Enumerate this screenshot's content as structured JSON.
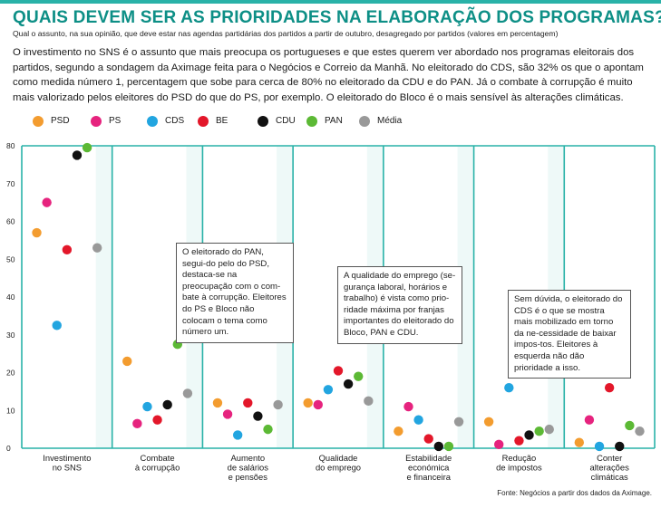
{
  "header": {
    "title": "QUAIS DEVEM SER AS PRIORIDADES NA ELABORAÇÃO DOS PROGRAMAS?",
    "subtitle": "Qual o assunto, na sua opinião, que deve estar nas agendas partidárias dos partidos a partir de outubro, desagregado por partidos (valores em percentagem)",
    "intro": "O investimento no SNS é o assunto que mais preocupa os portugueses e que estes querem ver abordado nos programas eleitorais dos partidos, segundo a sondagem da Aximage feita para o Negócios e Correio da Manhã. No eleitorado do CDS, são 32% os que o apontam como medida número 1, percentagem que sobe para cerca de 80% no eleitorado da CDU e do PAN. Já o combate à corrupção é muito mais valorizado pelos eleitores do PSD do que do PS, por exemplo. O eleitorado do Bloco é o mais sensível às alterações climáticas."
  },
  "colors": {
    "accent": "#29b2a8",
    "title": "#0d8f86",
    "PSD": "#f39c2f",
    "PS": "#e6237e",
    "CDS": "#22a5e0",
    "BE": "#e3172a",
    "CDU": "#111111",
    "PAN": "#5cb935",
    "Media": "#999999"
  },
  "callouts": {
    "pan": "O eleitorado do PAN, segui-do pelo do PSD, destaca-se na preocupação com o com-bate à corrupção. Eleitores do PS e Bloco não colocam o tema como número um.",
    "emprego": "A qualidade do emprego (se-gurança laboral, horários e trabalho) é vista como prio-ridade máxima por franjas importantes do eleitorado do Bloco, PAN e CDU.",
    "cds": "Sem dúvida, o eleitorado do CDS é o que se mostra mais mobilizado em torno da ne-cessidade de baixar impos-tos. Eleitores à esquerda não dão prioridade a isso."
  },
  "source": "Fonte: Negócios a partir dos dados da Aximage.",
  "chart_data": {
    "type": "scatter",
    "ylim": [
      0,
      80
    ],
    "yticks": [
      0,
      10,
      20,
      30,
      40,
      50,
      60,
      70,
      80
    ],
    "grid": true,
    "legend_position": "top-left",
    "categories": [
      "Investimento no SNS",
      "Combate à corrupção",
      "Aumento de salários e pensões",
      "Qualidade do emprego",
      "Estabilidade económica e financeira",
      "Redução de impostos",
      "Conter alterações climáticas"
    ],
    "category_lines": [
      [
        "Investimento",
        "no SNS"
      ],
      [
        "Combate",
        "à corrupção"
      ],
      [
        "Aumento",
        "de salários",
        "e pensões"
      ],
      [
        "Qualidade",
        "do emprego"
      ],
      [
        "Estabilidade",
        "económica",
        "e financeira"
      ],
      [
        "Redução",
        "de impostos"
      ],
      [
        "Conter",
        "alterações",
        "climáticas"
      ]
    ],
    "series": [
      {
        "name": "PSD",
        "color": "#f39c2f",
        "values": [
          57,
          23,
          12,
          12,
          4.5,
          7,
          1.5
        ]
      },
      {
        "name": "PS",
        "color": "#e6237e",
        "values": [
          65,
          6.5,
          9,
          11.5,
          11,
          1,
          7.5
        ]
      },
      {
        "name": "CDS",
        "color": "#22a5e0",
        "values": [
          32.5,
          11,
          3.5,
          15.5,
          7.5,
          16,
          0.5
        ]
      },
      {
        "name": "BE",
        "color": "#e3172a",
        "values": [
          52.5,
          7.5,
          12,
          20.5,
          2.5,
          2,
          16
        ]
      },
      {
        "name": "CDU",
        "color": "#111111",
        "values": [
          77.5,
          11.5,
          8.5,
          17,
          0.5,
          3.5,
          0.5
        ]
      },
      {
        "name": "PAN",
        "color": "#5cb935",
        "values": [
          79.5,
          27.5,
          5,
          19,
          0.5,
          4.5,
          6
        ]
      },
      {
        "name": "Média",
        "color": "#999999",
        "values": [
          53,
          14.5,
          11.5,
          12.5,
          7,
          5,
          4.5
        ]
      }
    ]
  }
}
